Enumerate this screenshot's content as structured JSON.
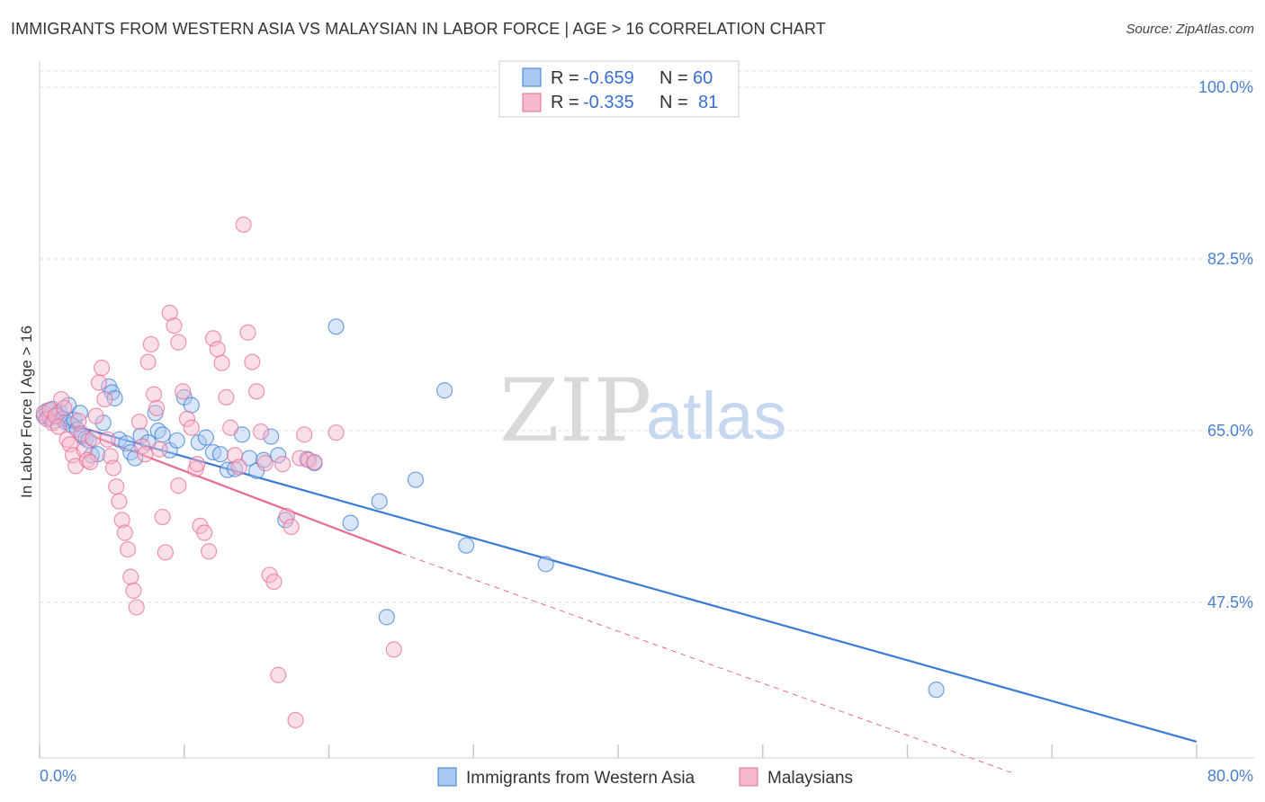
{
  "header": {
    "title": "IMMIGRANTS FROM WESTERN ASIA VS MALAYSIAN IN LABOR FORCE | AGE > 16 CORRELATION CHART",
    "source": "Source: ZipAtlas.com"
  },
  "watermark": {
    "zip": "ZIP",
    "atlas": "atlas"
  },
  "chart_data": {
    "type": "scatter",
    "title": "IMMIGRANTS FROM WESTERN ASIA VS MALAYSIAN IN LABOR FORCE | AGE > 16 CORRELATION CHART",
    "ylabel": "In Labor Force | Age > 16",
    "xlim": [
      0,
      80
    ],
    "ylim": [
      30,
      102
    ],
    "x_tick_labels": [
      "0.0%",
      "80.0%"
    ],
    "y_ticks": [
      100,
      82.5,
      65,
      47.5
    ],
    "y_tick_labels": [
      "100.0%",
      "82.5%",
      "65.0%",
      "47.5%"
    ],
    "grid": "dashed horizontal",
    "legend": {
      "placement": "top-center",
      "rows": [
        {
          "r_label": "R =",
          "r_value": "-0.659",
          "n_label": "N =",
          "n_value": "60"
        },
        {
          "r_label": "R =",
          "r_value": "-0.335",
          "n_label": "N =",
          "n_value": "81"
        }
      ]
    },
    "series": [
      {
        "name": "Immigrants from Western Asia",
        "color": "#3a7bd5",
        "fill": "#a9c8f0",
        "trend": {
          "x": [
            0,
            80
          ],
          "y": [
            66.5,
            33.3
          ]
        },
        "points": [
          [
            0.3,
            66.5
          ],
          [
            0.5,
            67.0
          ],
          [
            0.7,
            66.3
          ],
          [
            0.9,
            67.2
          ],
          [
            1.0,
            66.0
          ],
          [
            1.2,
            66.6
          ],
          [
            1.4,
            66.9
          ],
          [
            1.6,
            66.2
          ],
          [
            1.8,
            65.9
          ],
          [
            2.0,
            67.6
          ],
          [
            2.2,
            65.6
          ],
          [
            2.4,
            66.1
          ],
          [
            2.6,
            65.1
          ],
          [
            2.8,
            66.8
          ],
          [
            3.0,
            64.4
          ],
          [
            3.2,
            64.2
          ],
          [
            3.4,
            64.0
          ],
          [
            3.6,
            62.5
          ],
          [
            4.0,
            62.6
          ],
          [
            4.4,
            65.8
          ],
          [
            4.8,
            69.5
          ],
          [
            5.0,
            68.9
          ],
          [
            5.2,
            68.3
          ],
          [
            5.5,
            64.1
          ],
          [
            6.0,
            63.7
          ],
          [
            6.3,
            62.8
          ],
          [
            6.6,
            62.2
          ],
          [
            7.0,
            64.5
          ],
          [
            7.5,
            63.8
          ],
          [
            8.0,
            66.8
          ],
          [
            8.2,
            65.0
          ],
          [
            8.5,
            64.6
          ],
          [
            9.0,
            63.0
          ],
          [
            9.5,
            64.0
          ],
          [
            10.0,
            68.4
          ],
          [
            10.5,
            67.6
          ],
          [
            11.0,
            63.8
          ],
          [
            11.5,
            64.3
          ],
          [
            12.0,
            62.8
          ],
          [
            12.5,
            62.6
          ],
          [
            13.0,
            61.0
          ],
          [
            13.5,
            61.1
          ],
          [
            14.0,
            64.6
          ],
          [
            14.5,
            62.2
          ],
          [
            15.0,
            60.9
          ],
          [
            15.5,
            62.0
          ],
          [
            16.0,
            64.4
          ],
          [
            16.5,
            62.5
          ],
          [
            17.0,
            55.9
          ],
          [
            18.5,
            62.1
          ],
          [
            19.0,
            61.7
          ],
          [
            20.5,
            75.6
          ],
          [
            21.5,
            55.6
          ],
          [
            23.5,
            57.8
          ],
          [
            24.0,
            46.0
          ],
          [
            26.0,
            60.0
          ],
          [
            28.0,
            69.1
          ],
          [
            29.5,
            53.3
          ],
          [
            35.0,
            51.4
          ],
          [
            62.0,
            38.6
          ]
        ]
      },
      {
        "name": "Malaysians",
        "color": "#e86a93",
        "fill": "#f6b9cc",
        "trend": {
          "x": [
            0,
            25
          ],
          "y": [
            66.5,
            52.5
          ]
        },
        "trend_dashed": {
          "x": [
            25,
            67.5
          ],
          "y": [
            52.5,
            30.0
          ]
        },
        "points": [
          [
            0.3,
            66.8
          ],
          [
            0.5,
            66.2
          ],
          [
            0.7,
            67.1
          ],
          [
            0.9,
            65.8
          ],
          [
            1.1,
            66.5
          ],
          [
            1.3,
            65.4
          ],
          [
            1.5,
            68.2
          ],
          [
            1.7,
            67.3
          ],
          [
            1.9,
            64.1
          ],
          [
            2.1,
            63.6
          ],
          [
            2.3,
            62.5
          ],
          [
            2.5,
            61.4
          ],
          [
            2.7,
            66.0
          ],
          [
            2.9,
            64.7
          ],
          [
            3.1,
            63.0
          ],
          [
            3.3,
            62.0
          ],
          [
            3.5,
            61.8
          ],
          [
            3.7,
            64.2
          ],
          [
            3.9,
            66.5
          ],
          [
            4.1,
            69.9
          ],
          [
            4.3,
            71.4
          ],
          [
            4.5,
            68.2
          ],
          [
            4.7,
            64.1
          ],
          [
            4.9,
            62.4
          ],
          [
            5.1,
            61.2
          ],
          [
            5.3,
            59.3
          ],
          [
            5.5,
            57.8
          ],
          [
            5.7,
            55.9
          ],
          [
            5.9,
            54.6
          ],
          [
            6.1,
            52.9
          ],
          [
            6.3,
            50.1
          ],
          [
            6.5,
            48.7
          ],
          [
            6.7,
            47.0
          ],
          [
            6.9,
            65.9
          ],
          [
            7.1,
            63.4
          ],
          [
            7.3,
            62.6
          ],
          [
            7.5,
            72.0
          ],
          [
            7.7,
            73.8
          ],
          [
            7.9,
            68.7
          ],
          [
            8.1,
            67.3
          ],
          [
            8.3,
            63.1
          ],
          [
            8.5,
            56.2
          ],
          [
            8.7,
            52.6
          ],
          [
            9.0,
            77.0
          ],
          [
            9.3,
            75.7
          ],
          [
            9.6,
            74.0
          ],
          [
            9.9,
            69.0
          ],
          [
            10.2,
            66.2
          ],
          [
            10.5,
            65.3
          ],
          [
            10.8,
            61.1
          ],
          [
            11.1,
            55.3
          ],
          [
            11.4,
            54.6
          ],
          [
            11.7,
            52.7
          ],
          [
            12.0,
            74.4
          ],
          [
            12.3,
            73.3
          ],
          [
            12.6,
            71.9
          ],
          [
            12.9,
            68.4
          ],
          [
            13.2,
            65.3
          ],
          [
            13.5,
            62.5
          ],
          [
            13.8,
            61.3
          ],
          [
            14.1,
            86.0
          ],
          [
            14.4,
            75.0
          ],
          [
            14.7,
            72.0
          ],
          [
            15.0,
            69.0
          ],
          [
            15.3,
            64.9
          ],
          [
            15.6,
            61.7
          ],
          [
            15.9,
            50.3
          ],
          [
            16.2,
            49.6
          ],
          [
            16.5,
            40.1
          ],
          [
            16.8,
            61.6
          ],
          [
            17.1,
            56.3
          ],
          [
            17.4,
            55.2
          ],
          [
            17.7,
            35.5
          ],
          [
            18.0,
            62.2
          ],
          [
            18.3,
            64.6
          ],
          [
            18.6,
            62.0
          ],
          [
            19.0,
            61.8
          ],
          [
            20.5,
            64.8
          ],
          [
            24.5,
            42.7
          ],
          [
            10.9,
            61.6
          ],
          [
            9.6,
            59.4
          ]
        ]
      }
    ]
  }
}
